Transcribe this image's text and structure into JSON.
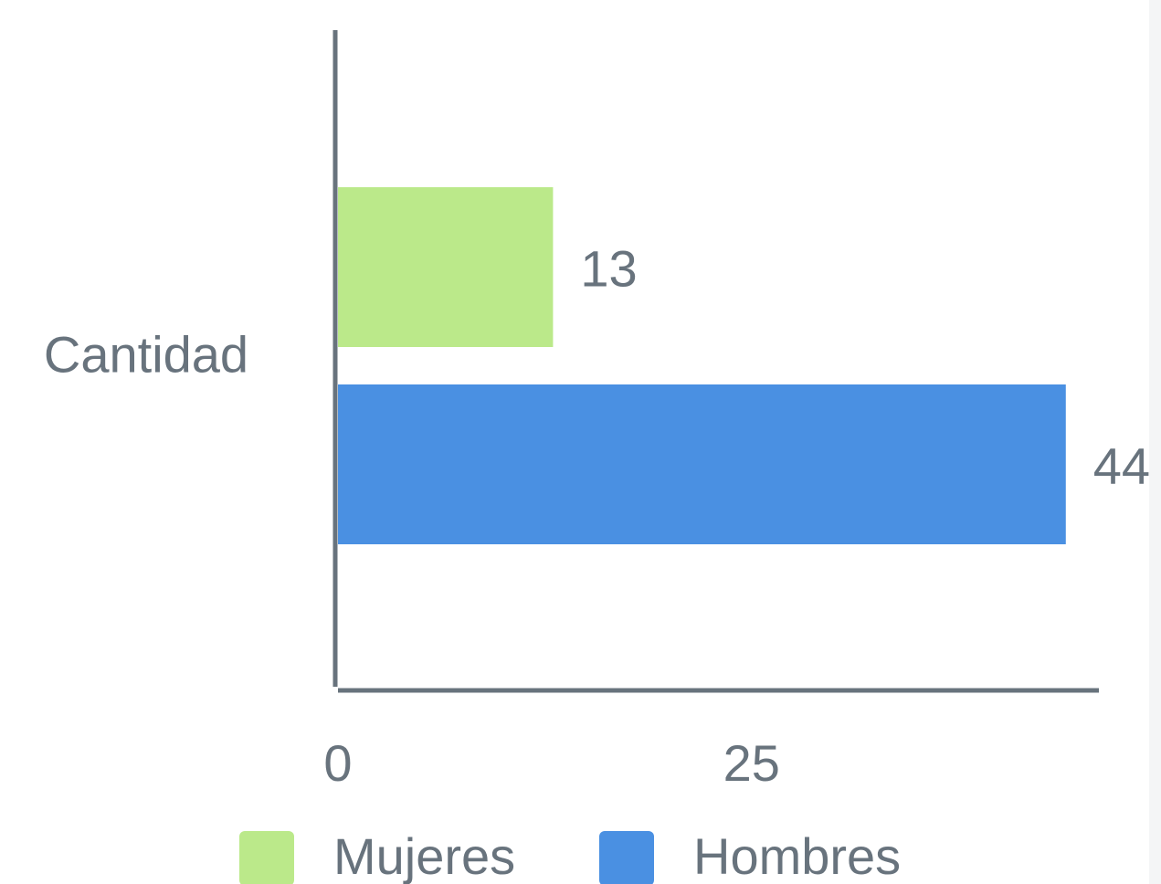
{
  "chart_data": {
    "type": "bar",
    "orientation": "horizontal",
    "categories": [
      "Cantidad"
    ],
    "series": [
      {
        "name": "Mujeres",
        "color": "#bbe98a",
        "values": [
          13
        ]
      },
      {
        "name": "Hombres",
        "color": "#4a90e2",
        "values": [
          44
        ]
      }
    ],
    "xlim": [
      0,
      46
    ],
    "xticks": [
      0,
      25
    ],
    "grid": false,
    "show_value_labels": true,
    "legend": "bottom"
  }
}
